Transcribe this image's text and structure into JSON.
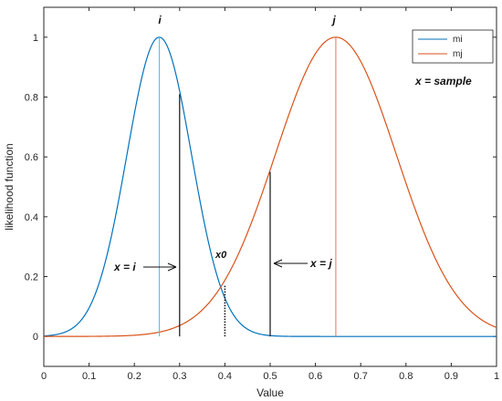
{
  "chart_data": {
    "type": "line",
    "title": "",
    "xlabel": "Value",
    "ylabel": "likelihood function",
    "xlim": [
      0,
      1
    ],
    "ylim": [
      -0.1,
      1.1
    ],
    "x_ticks": [
      0,
      0.1,
      0.2,
      0.3,
      0.4,
      0.5,
      0.6,
      0.7,
      0.8,
      0.9,
      1
    ],
    "x_tick_labels": [
      "0",
      "0.1",
      "0.2",
      "0.3",
      "0.4",
      "0.5",
      "0.6",
      "0.7",
      "0.8",
      "0.9",
      "1"
    ],
    "y_ticks": [
      0,
      0.2,
      0.4,
      0.6,
      0.8,
      1
    ],
    "y_tick_labels": [
      "0",
      "0.2",
      "0.4",
      "0.6",
      "0.8",
      "1"
    ],
    "grid": false,
    "legend_position": "top-right",
    "series": [
      {
        "name": "mi",
        "color": "#0072BD",
        "mean": 0.255,
        "sigma": 0.0715
      },
      {
        "name": "mj",
        "color": "#D95319",
        "mean": 0.645,
        "sigma": 0.134
      }
    ],
    "peak_markers": [
      {
        "label": "i",
        "x": 0.255,
        "color": "#4DBEEE"
      },
      {
        "label": "j",
        "x": 0.645,
        "color": "#E8744A"
      }
    ],
    "sample_lines": [
      {
        "x": 0.3,
        "y": 0.81
      },
      {
        "x": 0.5,
        "y": 0.55
      }
    ],
    "intersection": {
      "label": "x0",
      "x": 0.4,
      "y": 0.17
    },
    "annotations": {
      "x_equals_i": "x = i",
      "x_equals_j": "x = j",
      "x_sample": "x = sample"
    }
  }
}
